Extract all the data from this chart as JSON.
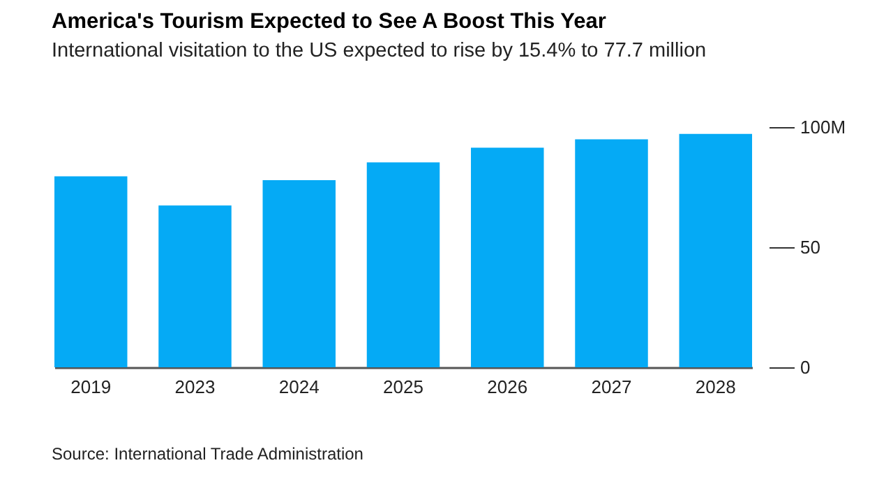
{
  "chart_data": {
    "type": "bar",
    "title": "America's Tourism Expected to See A Boost This Year",
    "subtitle": "International visitation to the US expected to rise by 15.4% to 77.7 million",
    "categories": [
      "2019",
      "2023",
      "2024",
      "2025",
      "2026",
      "2027",
      "2028"
    ],
    "values": [
      79.5,
      67.4,
      77.9,
      85.3,
      91.4,
      94.9,
      97.2
    ],
    "color": "#05aaf5",
    "ylim": [
      0,
      100
    ],
    "yticks": [
      0,
      50,
      {
        "value": 100,
        "label": "100M"
      }
    ],
    "grid": false,
    "annotations": [
      "Source: International Trade Administration"
    ]
  }
}
